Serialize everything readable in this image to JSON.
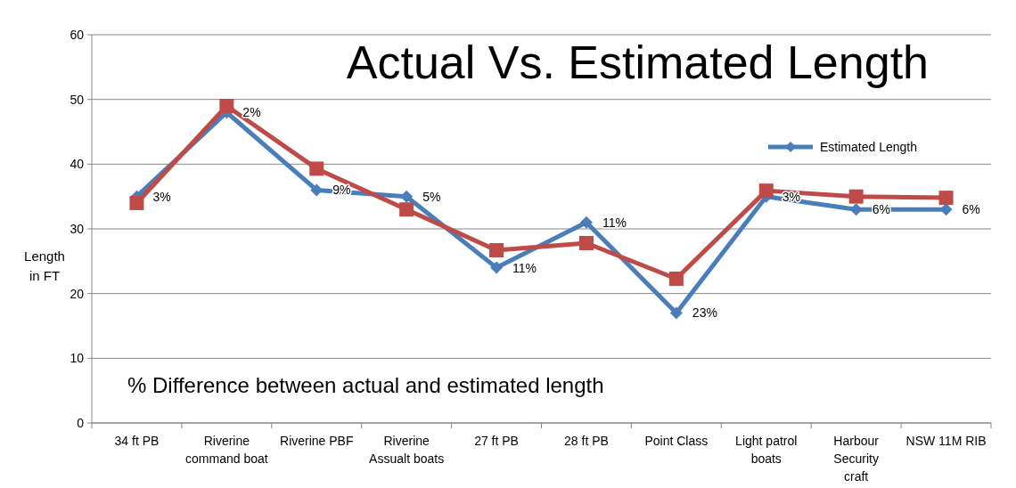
{
  "chart_data": {
    "type": "line",
    "title": "Actual Vs. Estimated Length",
    "ylabel": "Length in FT",
    "categories": [
      "34 ft PB",
      "Riverine command boat",
      "Riverine PBF",
      "Riverine Assualt boats",
      "27 ft PB",
      "28 ft PB",
      "Point Class",
      "Light patrol boats",
      "Harbour Security craft",
      "NSW 11M RIB"
    ],
    "series": [
      {
        "name": "Estimated Length",
        "color": "#4a7ebb",
        "marker": "diamond",
        "values": [
          35,
          48,
          36,
          35,
          24,
          31,
          17,
          35,
          33,
          33
        ]
      },
      {
        "color": "#be4b48",
        "marker": "square",
        "values": [
          34,
          49,
          39.3,
          33,
          26.7,
          27.8,
          22.3,
          35.9,
          35,
          34.8
        ]
      }
    ],
    "ylim": [
      0,
      60
    ],
    "yticks": [
      0,
      10,
      20,
      30,
      40,
      50,
      60
    ],
    "grid": "y",
    "legend": "top right",
    "annotations": [
      {
        "text": "3%",
        "x": "34 ft PB",
        "y": 35
      },
      {
        "text": "2%",
        "x": "Riverine command boat",
        "y": 48
      },
      {
        "text": "9%",
        "x": "Riverine PBF",
        "y": 36
      },
      {
        "text": "5%",
        "x": "Riverine Assualt boats",
        "y": 35
      },
      {
        "text": "11%",
        "x": "27 ft PB",
        "y": 24
      },
      {
        "text": "11%",
        "x": "28 ft PB",
        "y": 31
      },
      {
        "text": "23%",
        "x": "Point Class",
        "y": 17
      },
      {
        "text": "3%",
        "x": "Light patrol boats",
        "y": 35
      },
      {
        "text": "6%",
        "x": "Harbour Security craft",
        "y": 33
      },
      {
        "text": "6%",
        "x": "NSW 11M RIB",
        "y": 33
      },
      "% Difference between actual and estimated length"
    ]
  }
}
